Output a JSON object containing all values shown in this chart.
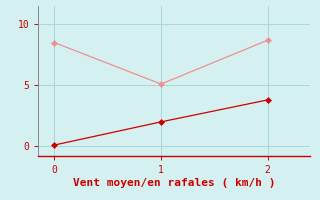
{
  "bg_color": "#d4f0f0",
  "plot_bg_color": "#d4f0f0",
  "line1_x": [
    0,
    1,
    2
  ],
  "line1_y": [
    8.5,
    5.1,
    8.7
  ],
  "line1_color": "#f09090",
  "line2_x": [
    0,
    1,
    2
  ],
  "line2_y": [
    0.1,
    2.0,
    3.8
  ],
  "line2_color": "#cc0000",
  "xlabel": "Vent moyen/en rafales ( km/h )",
  "xlabel_color": "#cc0000",
  "xlabel_fontsize": 8,
  "xlim": [
    -0.15,
    2.4
  ],
  "ylim": [
    -0.8,
    11.5
  ],
  "xticks": [
    0,
    1,
    2
  ],
  "yticks": [
    0,
    5,
    10
  ],
  "grid_color": "#a8d8d8",
  "tick_label_color": "#cc0000",
  "spine_color": "#888888",
  "bottom_spine_color": "#cc0000",
  "marker_size": 3,
  "line_width": 0.9,
  "tick_fontsize": 7
}
